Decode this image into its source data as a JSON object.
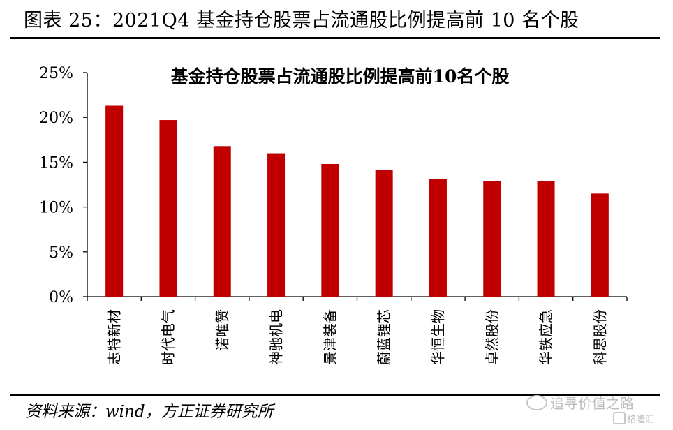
{
  "figure_title": "图表 25：2021Q4 基金持仓股票占流通股比例提高前 10 名个股",
  "source": "资料来源：wind，方正证券研究所",
  "watermark": {
    "main": "追寻价值之路",
    "sub": "格隆汇"
  },
  "colors": {
    "bar": "#C00000",
    "axis": "#000000"
  },
  "chart_data": {
    "type": "bar",
    "title": "基金持仓股票占流通股比例提高前10名个股",
    "xlabel": "",
    "ylabel": "",
    "ylim": [
      0,
      25
    ],
    "yticks": [
      0,
      5,
      10,
      15,
      20,
      25
    ],
    "ytick_labels": [
      "0%",
      "5%",
      "10%",
      "15%",
      "20%",
      "25%"
    ],
    "grid": false,
    "legend": "none",
    "categories": [
      "志特新材",
      "时代电气",
      "诺唯赞",
      "神驰机电",
      "景津装备",
      "蔚蓝锂芯",
      "华恒生物",
      "卓然股份",
      "华铁应急",
      "科思股份"
    ],
    "values": [
      21.3,
      19.7,
      16.8,
      16.0,
      14.8,
      14.1,
      13.1,
      12.9,
      12.9,
      11.5
    ]
  }
}
